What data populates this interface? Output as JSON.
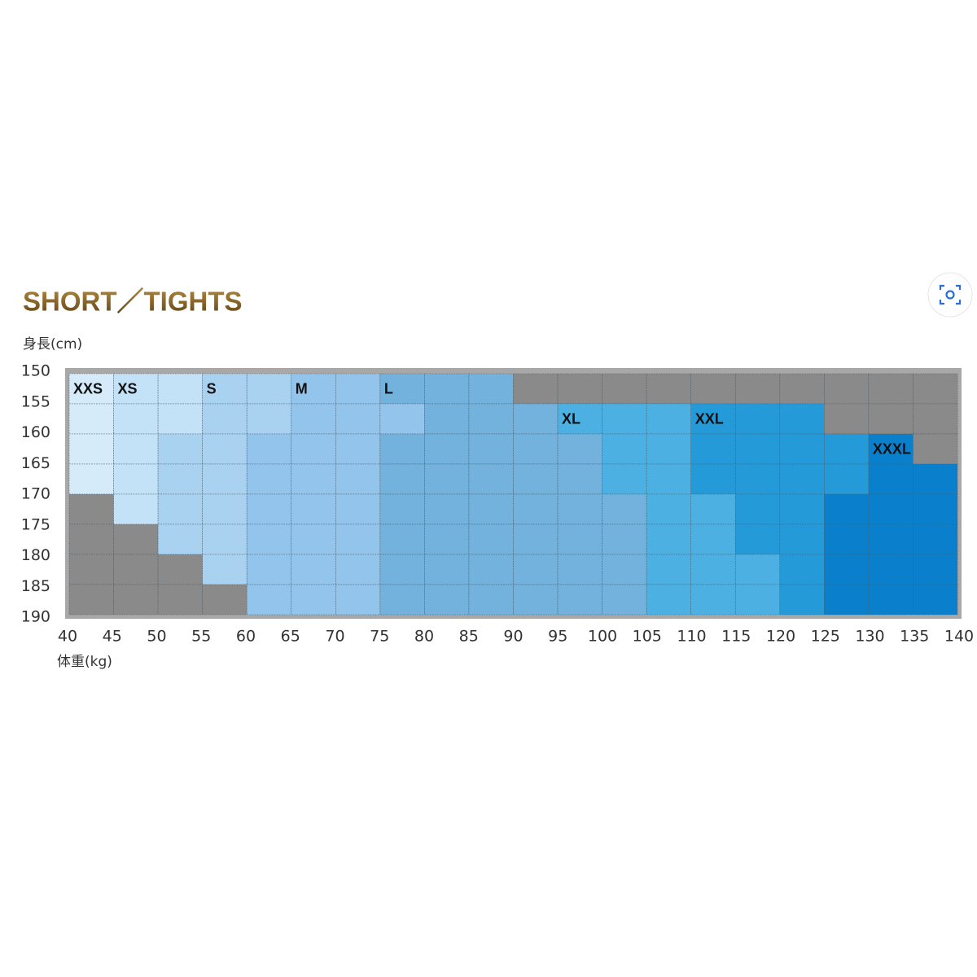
{
  "title": "SHORT／TIGHTS",
  "y_axis": {
    "label": "身長(cm)",
    "ticks": [
      "150",
      "155",
      "160",
      "165",
      "170",
      "175",
      "180",
      "185",
      "190"
    ]
  },
  "x_axis": {
    "label": "体重(kg)",
    "ticks": [
      "40",
      "45",
      "50",
      "55",
      "60",
      "65",
      "70",
      "75",
      "80",
      "85",
      "90",
      "95",
      "100",
      "105",
      "110",
      "115",
      "120",
      "125",
      "130",
      "135",
      "140"
    ]
  },
  "unavailable_color": "#8a8a8a",
  "sizes": [
    {
      "name": "XXS",
      "color": "#d6ebf9"
    },
    {
      "name": "XS",
      "color": "#c3e2f7"
    },
    {
      "name": "S",
      "color": "#a9d2f1"
    },
    {
      "name": "M",
      "color": "#93c4ec"
    },
    {
      "name": "L",
      "color": "#72b2dc"
    },
    {
      "name": "XL",
      "color": "#4cb1e2"
    },
    {
      "name": "XXL",
      "color": "#259ad9"
    },
    {
      "name": "XXXL",
      "color": "#0a80cc"
    }
  ],
  "grid": [
    [
      "XXS",
      "XS",
      "XS",
      "S",
      "S",
      "M",
      "M",
      "L",
      "L",
      "L",
      null,
      null,
      null,
      null,
      null,
      null,
      null,
      null,
      null,
      null
    ],
    [
      "XXS",
      "XS",
      "XS",
      "S",
      "S",
      "M",
      "M",
      "M",
      "L",
      "L",
      "L",
      "XL",
      "XL",
      "XL",
      "XXL",
      "XXL",
      "XXL",
      null,
      null,
      null
    ],
    [
      "XXS",
      "XS",
      "S",
      "S",
      "M",
      "M",
      "M",
      "L",
      "L",
      "L",
      "L",
      "L",
      "XL",
      "XL",
      "XXL",
      "XXL",
      "XXL",
      "XXL",
      "XXXL",
      null
    ],
    [
      "XXS",
      "XS",
      "S",
      "S",
      "M",
      "M",
      "M",
      "L",
      "L",
      "L",
      "L",
      "L",
      "XL",
      "XL",
      "XXL",
      "XXL",
      "XXL",
      "XXL",
      "XXXL",
      "XXXL"
    ],
    [
      null,
      "XS",
      "S",
      "S",
      "M",
      "M",
      "M",
      "L",
      "L",
      "L",
      "L",
      "L",
      "L",
      "XL",
      "XL",
      "XXL",
      "XXL",
      "XXXL",
      "XXXL",
      "XXXL"
    ],
    [
      null,
      null,
      "S",
      "S",
      "M",
      "M",
      "M",
      "L",
      "L",
      "L",
      "L",
      "L",
      "L",
      "XL",
      "XL",
      "XXL",
      "XXL",
      "XXXL",
      "XXXL",
      "XXXL"
    ],
    [
      null,
      null,
      null,
      "S",
      "M",
      "M",
      "M",
      "L",
      "L",
      "L",
      "L",
      "L",
      "L",
      "XL",
      "XL",
      "XL",
      "XXL",
      "XXXL",
      "XXXL",
      "XXXL"
    ],
    [
      null,
      null,
      null,
      null,
      "M",
      "M",
      "M",
      "L",
      "L",
      "L",
      "L",
      "L",
      "L",
      "XL",
      "XL",
      "XL",
      "XXL",
      "XXXL",
      "XXXL",
      "XXXL"
    ]
  ]
}
